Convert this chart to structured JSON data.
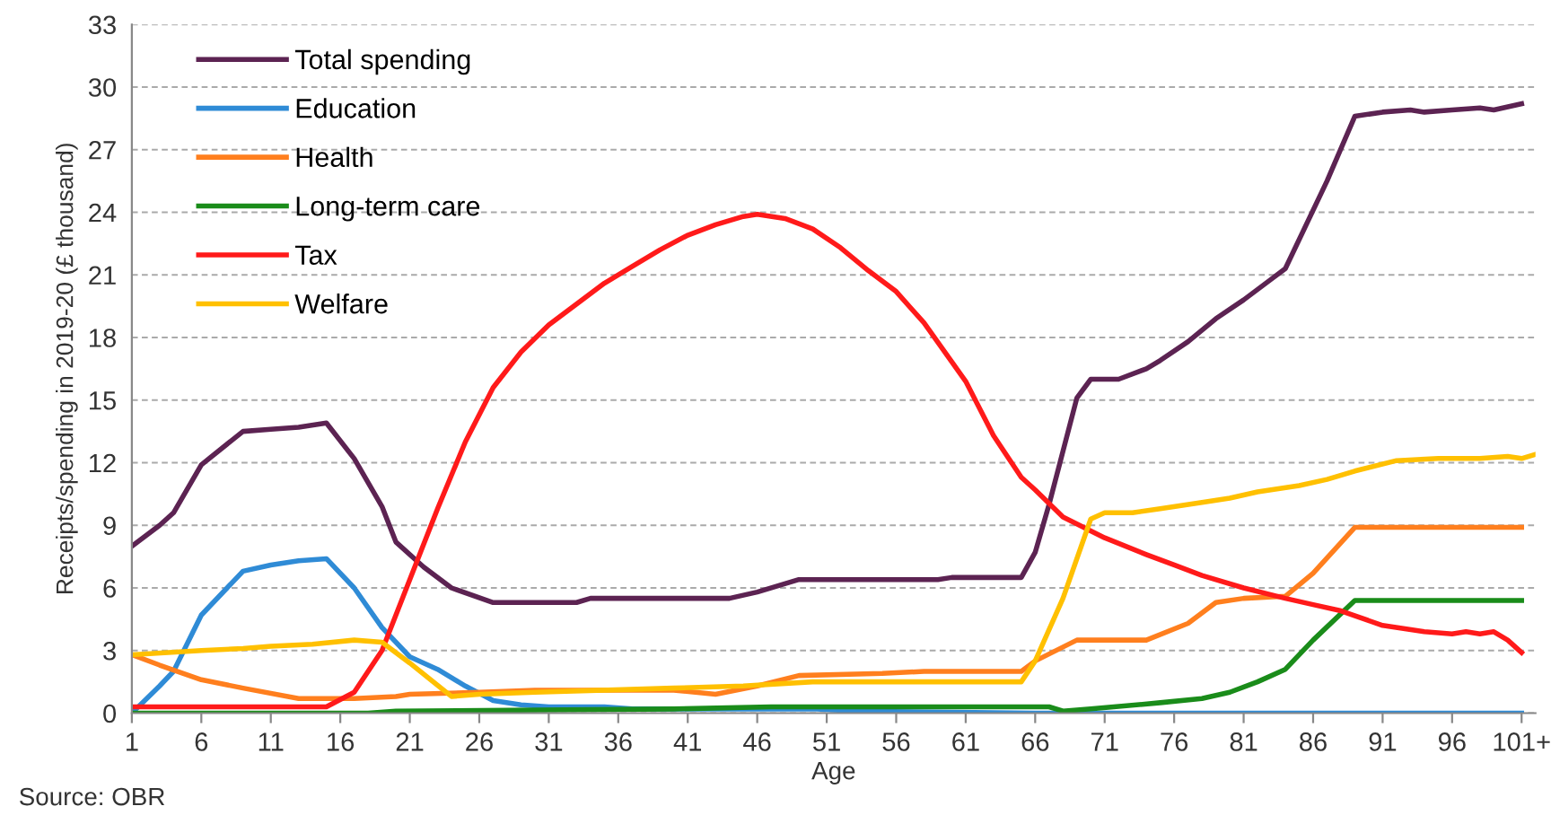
{
  "chart_data": {
    "type": "line",
    "xlabel": "Age",
    "ylabel": "Receipts/spending in 2019-20 (£ thousand)",
    "annotations": [
      "Source: OBR"
    ],
    "xlim": [
      1,
      102
    ],
    "xticks": [
      1,
      6,
      11,
      16,
      21,
      26,
      31,
      36,
      41,
      46,
      51,
      56,
      61,
      66,
      71,
      76,
      81,
      86,
      91,
      96,
      {
        "value": 101,
        "label": "101+"
      }
    ],
    "ylim": [
      0,
      33
    ],
    "yticks": [
      0,
      3,
      6,
      9,
      12,
      15,
      18,
      21,
      24,
      27,
      30,
      33
    ],
    "grid": "y",
    "legend": "top left",
    "marker": "none",
    "line_style": "solid",
    "series": [
      {
        "name": "Total spending",
        "color": "#5c2352",
        "x": [
          1,
          3,
          4,
          6,
          9,
          11,
          13,
          15,
          17,
          19,
          20,
          22,
          24,
          27,
          33,
          34,
          44,
          46,
          49,
          59,
          60,
          65,
          66,
          67,
          69,
          70,
          72,
          74,
          75,
          77,
          79,
          81,
          83,
          84,
          87,
          89,
          91,
          93,
          94,
          96,
          98,
          99,
          101
        ],
        "values": [
          8,
          9,
          9.6,
          11.9,
          13.5,
          13.6,
          13.7,
          13.9,
          12.2,
          9.9,
          8.2,
          7.0,
          6.0,
          5.3,
          5.3,
          5.5,
          5.5,
          5.8,
          6.4,
          6.4,
          6.5,
          6.5,
          7.7,
          10,
          15.1,
          16,
          16,
          16.5,
          16.9,
          17.8,
          18.9,
          19.8,
          20.8,
          21.3,
          25.5,
          28.6,
          28.8,
          28.9,
          28.8,
          28.9,
          29,
          28.9,
          29.2
        ]
      },
      {
        "name": "Education",
        "color": "#2f8bd6",
        "x": [
          1,
          3,
          4,
          6,
          9,
          11,
          13,
          15,
          17,
          19,
          21,
          23,
          25,
          27,
          29,
          31,
          35,
          37,
          50,
          53,
          66,
          101
        ],
        "values": [
          0,
          1.3,
          2,
          4.7,
          6.8,
          7.1,
          7.3,
          7.4,
          6,
          4.1,
          2.7,
          2.1,
          1.3,
          0.6,
          0.4,
          0.3,
          0.3,
          0.2,
          0.2,
          0.1,
          0,
          0
        ]
      },
      {
        "name": "Health",
        "color": "#ff7f1e",
        "x": [
          1,
          3,
          6,
          9,
          13,
          17,
          20,
          21,
          26,
          30,
          40,
          43,
          46,
          49,
          55,
          58,
          65,
          66,
          69,
          74,
          77,
          79,
          81,
          84,
          86,
          89,
          101
        ],
        "values": [
          2.8,
          2.3,
          1.6,
          1.2,
          0.7,
          0.7,
          0.8,
          0.9,
          1.0,
          1.1,
          1.1,
          0.9,
          1.3,
          1.8,
          1.9,
          2.0,
          2.0,
          2.5,
          3.5,
          3.5,
          4.3,
          5.3,
          5.5,
          5.6,
          6.7,
          8.9,
          8.9
        ]
      },
      {
        "name": "Long-term care",
        "color": "#1a8c1a",
        "x": [
          1,
          18,
          20,
          40,
          47,
          67,
          68,
          70,
          75,
          78,
          80,
          82,
          84,
          86,
          89,
          101
        ],
        "values": [
          0,
          0,
          0.1,
          0.2,
          0.3,
          0.3,
          0.1,
          0.2,
          0.5,
          0.7,
          1.0,
          1.5,
          2.1,
          3.5,
          5.4,
          5.4
        ]
      },
      {
        "name": "Tax",
        "color": "#ff1a1a",
        "x": [
          1,
          15,
          17,
          19,
          21,
          23,
          25,
          27,
          29,
          31,
          33,
          35,
          37,
          39,
          41,
          43,
          45,
          46,
          48,
          50,
          52,
          54,
          56,
          58,
          61,
          63,
          65,
          66,
          68,
          71,
          74,
          76,
          78,
          81,
          84,
          86,
          88,
          91,
          94,
          96,
          97,
          98,
          99,
          100,
          101
        ],
        "values": [
          0.3,
          0.3,
          1.0,
          3,
          6.4,
          9.8,
          13,
          15.6,
          17.3,
          18.6,
          19.6,
          20.6,
          21.4,
          22.2,
          22.9,
          23.4,
          23.8,
          23.9,
          23.7,
          23.2,
          22.3,
          21.2,
          20.2,
          18.7,
          15.9,
          13.3,
          11.3,
          10.7,
          9.4,
          8.4,
          7.6,
          7.1,
          6.6,
          6.0,
          5.5,
          5.2,
          4.9,
          4.2,
          3.9,
          3.8,
          3.9,
          3.8,
          3.9,
          3.5,
          2.9
        ]
      },
      {
        "name": "Welfare",
        "color": "#ffc000",
        "x": [
          1,
          6,
          9,
          11,
          14,
          17,
          19,
          21,
          24,
          26,
          30,
          40,
          45,
          50,
          55,
          65,
          66,
          68,
          70,
          71,
          73,
          75,
          78,
          80,
          82,
          85,
          87,
          89,
          92,
          95,
          98,
          100,
          101,
          102
        ],
        "values": [
          2.8,
          3.0,
          3.1,
          3.2,
          3.3,
          3.5,
          3.4,
          2.4,
          0.8,
          0.9,
          1.0,
          1.2,
          1.3,
          1.5,
          1.5,
          1.5,
          2.5,
          5.5,
          9.3,
          9.6,
          9.6,
          9.8,
          10.1,
          10.3,
          10.6,
          10.9,
          11.2,
          11.6,
          12.1,
          12.2,
          12.2,
          12.3,
          12.2,
          12.4
        ]
      }
    ]
  }
}
